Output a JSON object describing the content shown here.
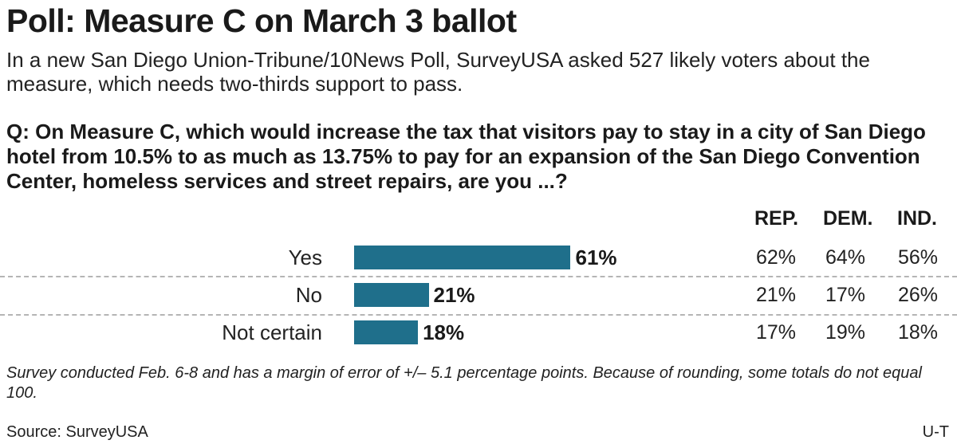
{
  "title": "Poll: Measure C on March 3 ballot",
  "subtitle": "In a new San Diego Union-Tribune/10News Poll, SurveyUSA asked 527 likely voters about the measure, which needs two-thirds support to pass.",
  "question": "Q: On Measure C, which would increase the tax that visitors pay to stay in a city of San Diego hotel from 10.5% to as much as 13.75% to pay for an expansion of the San Diego Convention Center, homeless services and street repairs, are you ...?",
  "note": "Survey conducted Feb. 6-8 and has a margin of error of +/– 5.1 percentage points. Because of rounding, some totals do not equal 100.",
  "source": "Source: SurveyUSA",
  "credit": "U-T",
  "colors": {
    "bar": "#1f6f8b",
    "divider": "#b5b5b5"
  },
  "chart_data": {
    "type": "bar",
    "orientation": "horizontal",
    "categories": [
      "Yes",
      "No",
      "Not certain"
    ],
    "values": [
      61,
      21,
      18
    ],
    "value_labels": [
      "61%",
      "21%",
      "18%"
    ],
    "xlim": [
      0,
      100
    ],
    "table": {
      "columns": [
        "REP.",
        "DEM.",
        "IND."
      ],
      "rows": [
        [
          "62%",
          "64%",
          "56%"
        ],
        [
          "21%",
          "17%",
          "26%"
        ],
        [
          "17%",
          "19%",
          "18%"
        ]
      ]
    }
  }
}
